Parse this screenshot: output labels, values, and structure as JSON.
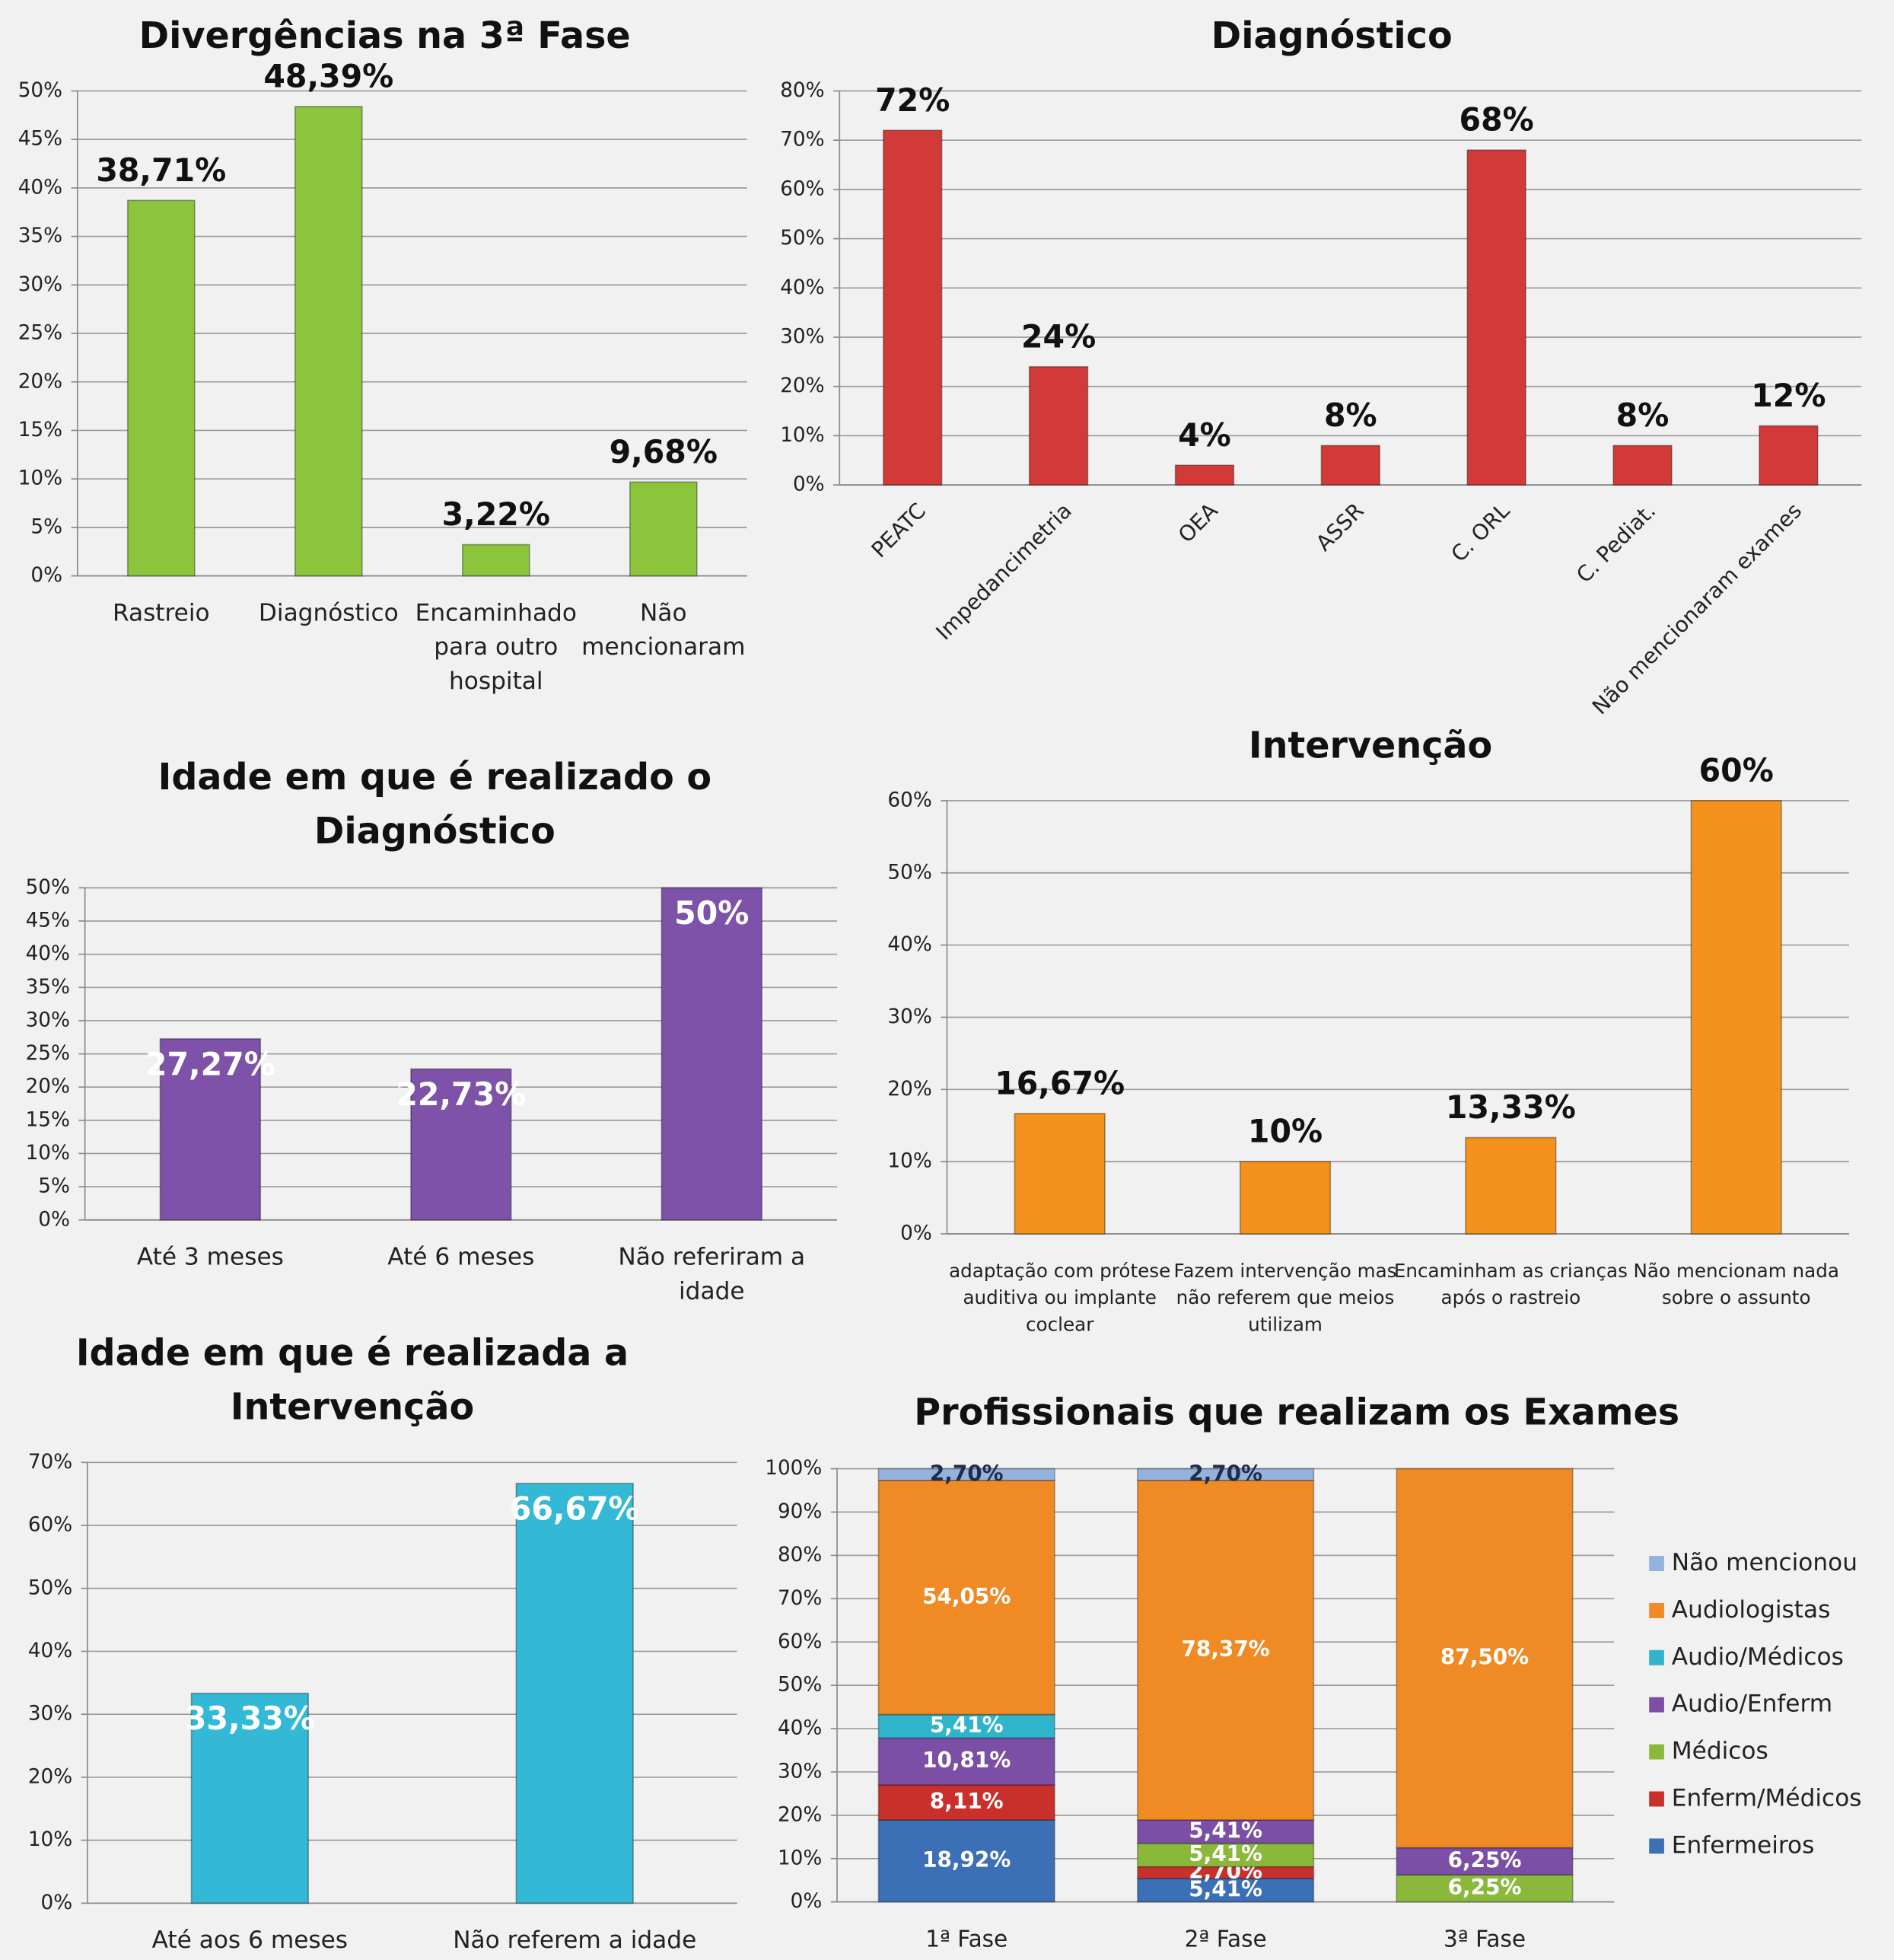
{
  "chart_data": [
    {
      "type": "bar",
      "title": "Divergências na 3ª Fase",
      "categories": [
        "Rastreio",
        "Diagnóstico",
        "Encaminhado para outro hospital",
        "Não mencionaram"
      ],
      "values": [
        38.71,
        48.39,
        3.22,
        9.68
      ],
      "value_labels": [
        "38,71%",
        "48,39%",
        "3,22%",
        "9,68%"
      ],
      "color": "#8cc43c",
      "ylim": [
        0,
        50
      ],
      "yticks": [
        {
          "value": 0,
          "label": "0%"
        },
        {
          "value": 5,
          "label": "5%"
        },
        {
          "value": 10,
          "label": "10%"
        },
        {
          "value": 15,
          "label": "15%"
        },
        {
          "value": 20,
          "label": "20%"
        },
        {
          "value": 25,
          "label": "25%"
        },
        {
          "value": 30,
          "label": "30%"
        },
        {
          "value": 35,
          "label": "35%"
        },
        {
          "value": 40,
          "label": "40%"
        },
        {
          "value": 45,
          "label": "45%"
        },
        {
          "value": 50,
          "label": "50%"
        }
      ],
      "grid": true
    },
    {
      "type": "bar",
      "title": "Diagnóstico",
      "categories": [
        "PEATC",
        "Impedancimetria",
        "OEA",
        "ASSR",
        "C. ORL",
        "C. Pediat.",
        "Não mencionaram exames"
      ],
      "values": [
        72,
        24,
        4,
        8,
        68,
        8,
        12
      ],
      "value_labels": [
        "72%",
        "24%",
        "4%",
        "8%",
        "68%",
        "8%",
        "12%"
      ],
      "color": "#d23a3a",
      "ylim": [
        0,
        80
      ],
      "yticks": [
        {
          "value": 0,
          "label": "0%"
        },
        {
          "value": 10,
          "label": "10%"
        },
        {
          "value": 20,
          "label": "20%"
        },
        {
          "value": 30,
          "label": "30%"
        },
        {
          "value": 40,
          "label": "40%"
        },
        {
          "value": 50,
          "label": "50%"
        },
        {
          "value": 60,
          "label": "60%"
        },
        {
          "value": 70,
          "label": "70%"
        },
        {
          "value": 80,
          "label": "80%"
        }
      ],
      "grid": true
    },
    {
      "type": "bar",
      "title": "Idade em que é realizado o Diagnóstico",
      "categories": [
        "Até 3 meses",
        "Até 6 meses",
        "Não referiram a idade"
      ],
      "values": [
        27.27,
        22.73,
        50
      ],
      "value_labels": [
        "27,27%",
        "22,73%",
        "50%"
      ],
      "color": "#7d52a8",
      "ylim": [
        0,
        50
      ],
      "yticks": [
        {
          "value": 0,
          "label": "0%"
        },
        {
          "value": 5,
          "label": "5%"
        },
        {
          "value": 10,
          "label": "10%"
        },
        {
          "value": 15,
          "label": "15%"
        },
        {
          "value": 20,
          "label": "20%"
        },
        {
          "value": 25,
          "label": "25%"
        },
        {
          "value": 30,
          "label": "30%"
        },
        {
          "value": 35,
          "label": "35%"
        },
        {
          "value": 40,
          "label": "40%"
        },
        {
          "value": 45,
          "label": "45%"
        },
        {
          "value": 50,
          "label": "50%"
        }
      ],
      "grid": true
    },
    {
      "type": "bar",
      "title": "Intervenção",
      "categories": [
        "adaptação com prótese auditiva ou implante coclear",
        "Fazem intervenção mas não referem que meios utilizam",
        "Encaminham as crianças após o rastreio",
        "Não mencionam nada sobre o assunto"
      ],
      "values": [
        16.67,
        10,
        13.33,
        60
      ],
      "value_labels": [
        "16,67%",
        "10%",
        "13,33%",
        "60%"
      ],
      "color": "#f5921e",
      "ylim": [
        0,
        60
      ],
      "yticks": [
        {
          "value": 0,
          "label": "0%"
        },
        {
          "value": 10,
          "label": "10%"
        },
        {
          "value": 20,
          "label": "20%"
        },
        {
          "value": 30,
          "label": "30%"
        },
        {
          "value": 40,
          "label": "40%"
        },
        {
          "value": 50,
          "label": "50%"
        },
        {
          "value": 60,
          "label": "60%"
        }
      ],
      "grid": true
    },
    {
      "type": "bar",
      "title": "Idade em que é realizada a Intervenção",
      "categories": [
        "Até aos 6 meses",
        "Não referem a idade"
      ],
      "values": [
        33.33,
        66.67
      ],
      "value_labels": [
        "33,33%",
        "66,67%"
      ],
      "color": "#33b9d6",
      "ylim": [
        0,
        70
      ],
      "yticks": [
        {
          "value": 0,
          "label": "0%"
        },
        {
          "value": 10,
          "label": "10%"
        },
        {
          "value": 20,
          "label": "20%"
        },
        {
          "value": 30,
          "label": "30%"
        },
        {
          "value": 40,
          "label": "40%"
        },
        {
          "value": 50,
          "label": "50%"
        },
        {
          "value": 60,
          "label": "60%"
        },
        {
          "value": 70,
          "label": "70%"
        }
      ],
      "grid": true
    },
    {
      "type": "stacked_bar",
      "title": "Profissionais que realizam os Exames",
      "categories": [
        "1ª Fase",
        "2ª Fase",
        "3ª Fase"
      ],
      "series": [
        {
          "name": "Enfermeiros",
          "color": "#3b6fb6",
          "values": [
            18.92,
            5.41,
            null
          ],
          "value_labels": [
            "18,92%",
            "5,41%",
            null
          ]
        },
        {
          "name": "Enferm/Médicos",
          "color": "#c9302c",
          "values": [
            8.11,
            2.7,
            null
          ],
          "value_labels": [
            "8,11%",
            "2,70%",
            null
          ]
        },
        {
          "name": "Médicos",
          "color": "#8ab83a",
          "values": [
            null,
            5.41,
            6.25
          ],
          "value_labels": [
            null,
            "5,41%",
            "6,25%"
          ]
        },
        {
          "name": "Audio/Enferm",
          "color": "#7b4fa5",
          "values": [
            10.81,
            5.41,
            6.25
          ],
          "value_labels": [
            "10,81%",
            "5,41%",
            "6,25%"
          ]
        },
        {
          "name": "Audio/Médicos",
          "color": "#2fb4cc",
          "values": [
            5.41,
            null,
            null
          ],
          "value_labels": [
            "5,41%",
            null,
            null
          ]
        },
        {
          "name": "Audiologistas",
          "color": "#f08a24",
          "values": [
            54.05,
            78.37,
            87.5
          ],
          "value_labels": [
            "54,05%",
            "78,37%",
            "87,50%"
          ]
        },
        {
          "name": "Não mencionou",
          "color": "#93b3dc",
          "values": [
            2.7,
            2.7,
            null
          ],
          "value_labels": [
            "2,70%",
            "2,70%",
            null
          ]
        }
      ],
      "ylim": [
        0,
        100
      ],
      "yticks": [
        {
          "value": 0,
          "label": "0%"
        },
        {
          "value": 10,
          "label": "10%"
        },
        {
          "value": 20,
          "label": "20%"
        },
        {
          "value": 30,
          "label": "30%"
        },
        {
          "value": 40,
          "label": "40%"
        },
        {
          "value": 50,
          "label": "50%"
        },
        {
          "value": 60,
          "label": "60%"
        },
        {
          "value": 70,
          "label": "70%"
        },
        {
          "value": 80,
          "label": "80%"
        },
        {
          "value": 90,
          "label": "90%"
        },
        {
          "value": 100,
          "label": "100%"
        }
      ],
      "grid": true,
      "legend": "right"
    }
  ]
}
